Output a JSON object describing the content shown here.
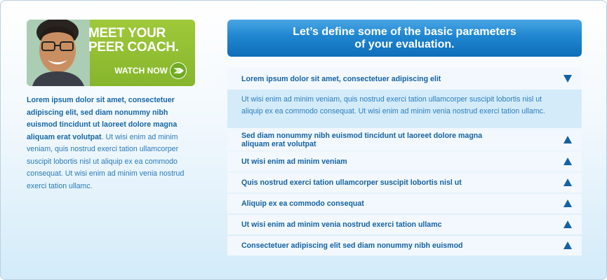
{
  "promo": {
    "headline_line1": "MEET YOUR",
    "headline_line2": "PEER COACH.",
    "watch_label": "WATCH NOW",
    "arrow_icon": "right-arrow-circle-icon",
    "colors": {
      "green": "#8fbf30",
      "arrow": "#7ab82a"
    }
  },
  "intro": {
    "bold_text": "Lorem ipsum dolor sit amet, consectetuer adipiscing elit, sed diam nonummy nibh euismod tincidunt ut laoreet dolore magna aliquam erat volutpat",
    "body_text": ". Ut wisi enim ad minim veniam, quis nostrud exerci tation ullamcorper suscipit lobortis nisl ut aliquip ex ea commodo consequat. Ut wisi enim ad minim venia nostrud exerci tation ullamc."
  },
  "header": {
    "line1": "Let’s define some of the basic parameters",
    "line2": "of your evaluation."
  },
  "accordion": {
    "open_item": {
      "title": "Lorem ipsum dolor sit amet, consectetuer adipiscing elit",
      "content": "Ut wisi enim ad minim veniam, quis nostrud exerci tation ullamcorper suscipit lobortis nisl ut aliquip ex ea commodo consequat. Ut wisi enim ad minim venia nostrud exerci tation ullamc.",
      "icon": "triangle-down-icon"
    },
    "items": [
      {
        "title": "Sed diam nonummy nibh euismod tincidunt ut laoreet dolore magna aliquam erat volutpat",
        "icon": "triangle-up-icon"
      },
      {
        "title": "Ut wisi enim ad minim veniam",
        "icon": "triangle-up-icon"
      },
      {
        "title": "Quis nostrud exerci tation ullamcorper suscipit lobortis nisl ut",
        "icon": "triangle-up-icon"
      },
      {
        "title": "Aliquip ex ea commodo consequat",
        "icon": "triangle-up-icon"
      },
      {
        "title": "Ut wisi enim ad minim venia nostrud exerci tation ullamc",
        "icon": "triangle-up-icon"
      },
      {
        "title": "Consectetuer adipiscing elit sed diam nonummy nibh euismod",
        "icon": "triangle-up-icon"
      }
    ]
  }
}
